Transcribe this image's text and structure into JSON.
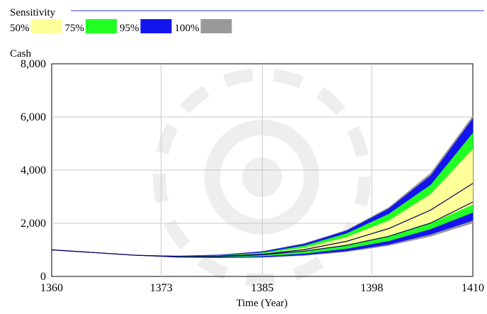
{
  "chart_data": {
    "type": "area",
    "title": "Sensitivity",
    "ylabel": "Cash",
    "xlabel": "Time (Year)",
    "x_ticks": [
      1360,
      1373,
      1385,
      1398,
      1410
    ],
    "x_tick_labels": [
      "1360",
      "1373",
      "1385",
      "1398",
      "1410"
    ],
    "y_ticks": [
      0,
      2000,
      4000,
      6000,
      8000
    ],
    "y_tick_labels": [
      "0",
      "2,000",
      "4,000",
      "6,000",
      "8,000"
    ],
    "xlim": [
      1360,
      1410
    ],
    "ylim": [
      0,
      8000
    ],
    "grid": true,
    "legend_position": "top-left",
    "legend": [
      {
        "label": "50%",
        "color": "#ffff99"
      },
      {
        "label": "75%",
        "color": "#22ff22"
      },
      {
        "label": "95%",
        "color": "#1414ee"
      },
      {
        "label": "100%",
        "color": "#999999"
      }
    ],
    "x": [
      1360,
      1365,
      1370,
      1375,
      1380,
      1385,
      1390,
      1395,
      1400,
      1405,
      1410
    ],
    "bands": [
      {
        "name": "100%",
        "color": "#999999",
        "lower": [
          1000,
          900,
          790,
          710,
          690,
          710,
          780,
          920,
          1150,
          1500,
          2000
        ],
        "upper": [
          1000,
          900,
          800,
          780,
          820,
          950,
          1250,
          1750,
          2600,
          3900,
          6050
        ]
      },
      {
        "name": "95%",
        "color": "#1414ee",
        "lower": [
          1000,
          900,
          790,
          715,
          700,
          720,
          800,
          950,
          1200,
          1580,
          2100
        ],
        "upper": [
          1000,
          900,
          800,
          775,
          815,
          940,
          1230,
          1720,
          2550,
          3800,
          5950
        ]
      },
      {
        "name": "75%",
        "color": "#22ff22",
        "lower": [
          1000,
          900,
          792,
          725,
          720,
          760,
          860,
          1040,
          1330,
          1780,
          2400
        ],
        "upper": [
          1000,
          900,
          798,
          765,
          795,
          900,
          1160,
          1620,
          2350,
          3450,
          5400
        ]
      },
      {
        "name": "50%",
        "color": "#ffff99",
        "lower": [
          1000,
          900,
          794,
          740,
          745,
          810,
          950,
          1160,
          1500,
          2000,
          2700
        ],
        "upper": [
          1000,
          900,
          797,
          755,
          775,
          860,
          1080,
          1480,
          2100,
          3100,
          4800
        ]
      }
    ],
    "lines": [
      {
        "color": "#000066",
        "values": [
          1000,
          900,
          796,
          750,
          762,
          835,
          1010,
          1320,
          1800,
          2500,
          3500
        ]
      },
      {
        "color": "#000066",
        "values": [
          1000,
          900,
          794,
          742,
          748,
          815,
          955,
          1170,
          1510,
          2010,
          2800
        ]
      }
    ]
  }
}
